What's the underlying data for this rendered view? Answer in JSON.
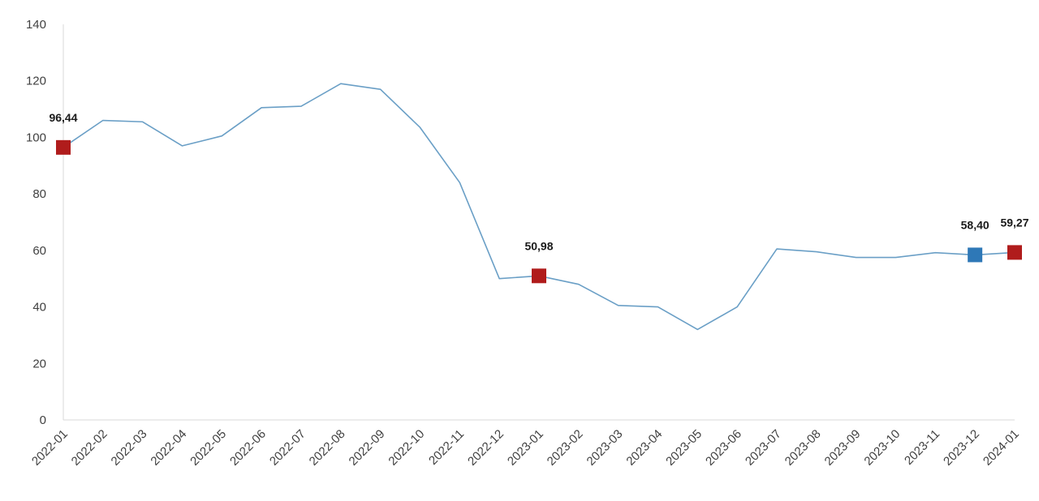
{
  "chart_data": {
    "type": "line",
    "title": "",
    "xlabel": "",
    "ylabel": "",
    "ylim": [
      0,
      140
    ],
    "yticks": [
      0,
      20,
      40,
      60,
      80,
      100,
      120,
      140
    ],
    "grid": false,
    "legend": "none",
    "categories": [
      "2022-01",
      "2022-02",
      "2022-03",
      "2022-04",
      "2022-05",
      "2022-06",
      "2022-07",
      "2022-08",
      "2022-09",
      "2022-10",
      "2022-11",
      "2022-12",
      "2023-01",
      "2023-02",
      "2023-03",
      "2023-04",
      "2023-05",
      "2023-06",
      "2023-07",
      "2023-08",
      "2023-09",
      "2023-10",
      "2023-11",
      "2023-12",
      "2024-01"
    ],
    "series": [
      {
        "values": [
          96.44,
          106,
          105.5,
          97,
          100.5,
          110.5,
          111,
          119,
          117,
          103.5,
          84,
          50,
          50.98,
          48,
          40.5,
          40,
          32,
          40,
          60.5,
          59.5,
          57.5,
          57.5,
          59.2,
          58.4,
          59.27
        ],
        "color": "#6a9fc6"
      }
    ],
    "highlights": [
      {
        "category": "2022-01",
        "value": 96.44,
        "label": "96,44",
        "color": "#b01c1c"
      },
      {
        "category": "2023-01",
        "value": 50.98,
        "label": "50,98",
        "color": "#b01c1c"
      },
      {
        "category": "2023-12",
        "value": 58.4,
        "label": "58,40",
        "color": "#2e78b7"
      },
      {
        "category": "2024-01",
        "value": 59.27,
        "label": "59,27",
        "color": "#b01c1c"
      }
    ],
    "axis_color": "#d9d9d9"
  }
}
